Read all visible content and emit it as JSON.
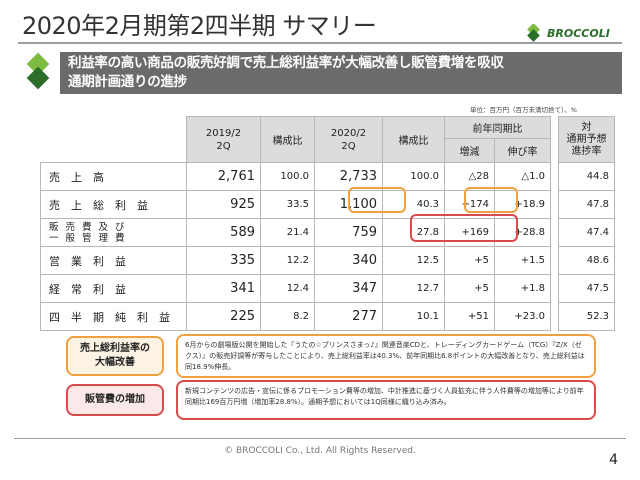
{
  "title": "2020年2月期第2四半期 サマリー",
  "logo_text": "BROCCOLI",
  "headline": {
    "line1": "利益率の高い商品の販売好調で売上総利益率が大幅改善し販管費増を吸収",
    "line2": "通期計画通りの進捗"
  },
  "unit_note": "単位：百万円（百万未満切捨て）、%",
  "table": {
    "headers": {
      "prev_period": "2019/2",
      "prev_period_q": "2Q",
      "ratio": "構成比",
      "curr_period": "2020/2",
      "curr_period_q": "2Q",
      "ratio2": "構成比",
      "yoy": "前年同期比",
      "change": "増減",
      "growth": "伸び率",
      "plan_line1": "対",
      "plan_line2": "通期予想",
      "plan_line3": "進捗率"
    },
    "rows": [
      {
        "label": "売上高",
        "label2": "",
        "prev": "2,761",
        "prev_ratio": "100.0",
        "curr": "2,733",
        "curr_ratio": "100.0",
        "change": "△28",
        "growth": "△1.0",
        "progress": "44.8"
      },
      {
        "label": "売上総利益",
        "label2": "",
        "prev": "925",
        "prev_ratio": "33.5",
        "curr": "1,100",
        "curr_ratio": "40.3",
        "change": "+174",
        "growth": "+18.9",
        "progress": "47.8"
      },
      {
        "label": "販売費及び",
        "label2": "一般管理費",
        "prev": "589",
        "prev_ratio": "21.4",
        "curr": "759",
        "curr_ratio": "27.8",
        "change": "+169",
        "growth": "+28.8",
        "progress": "47.4"
      },
      {
        "label": "営業利益",
        "label2": "",
        "prev": "335",
        "prev_ratio": "12.2",
        "curr": "340",
        "curr_ratio": "12.5",
        "change": "+5",
        "growth": "+1.5",
        "progress": "48.6"
      },
      {
        "label": "経常利益",
        "label2": "",
        "prev": "341",
        "prev_ratio": "12.4",
        "curr": "347",
        "curr_ratio": "12.7",
        "change": "+5",
        "growth": "+1.8",
        "progress": "47.5"
      },
      {
        "label": "四半期純利益",
        "label2": "",
        "prev": "225",
        "prev_ratio": "8.2",
        "curr": "277",
        "curr_ratio": "10.1",
        "change": "+51",
        "growth": "+23.0",
        "progress": "52.3"
      }
    ]
  },
  "notes": [
    {
      "label_line1": "売上総利益率の",
      "label_line2": "大幅改善",
      "text": "6月からの劇場版公開を開始した『うたの☆プリンスさまっ♪』関連音楽CDと、トレーディングカードゲーム（TCG）『Z/X（ゼクス）』の販売好調等が寄与したことにより、売上総利益率は40.3%、前年同期比6.8ポイントの大幅改善となり、売上総利益は同18.9%伸長。"
    },
    {
      "label_line1": "販管費の増加",
      "label_line2": "",
      "text": "新規コンテンツの広告・宣伝に係るプロモーション費等の増加、中計推進に基づく人員拡充に伴う人件費等の増加等により前年同期比169百万円増（増加率28.8%）。通期予想においては1Q同様に織り込み済み。"
    }
  ],
  "copyright": "© BROCCOLI Co., Ltd. All Rights Reserved.",
  "page_number": "4",
  "colors": {
    "brand_green": "#2a6e2a",
    "headline_bg": "#6b6b6b",
    "highlight_orange": "#f0a040",
    "highlight_red": "#d94b4b",
    "header_bg": "#dcdcdc"
  }
}
